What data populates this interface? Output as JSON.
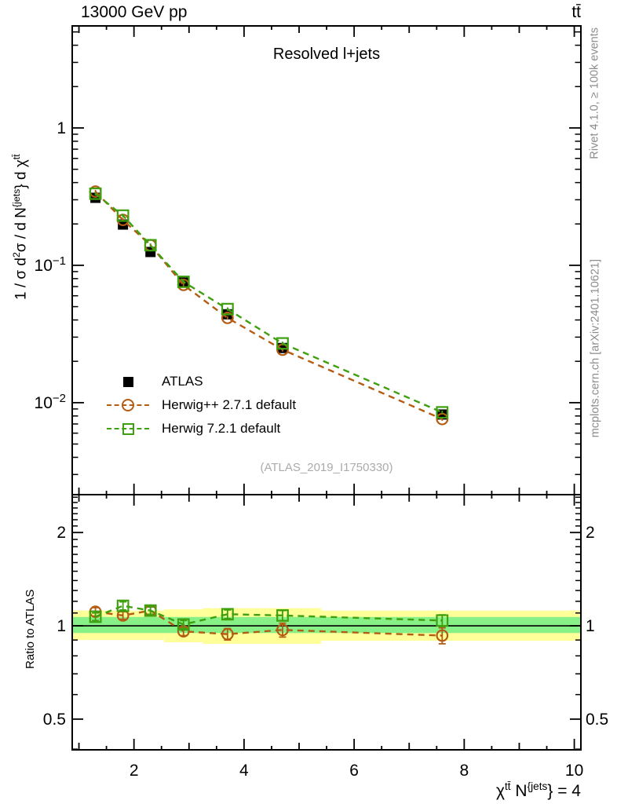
{
  "header": {
    "left": "13000 GeV pp",
    "right": "tt̄"
  },
  "plot": {
    "title": "Resolved l+jets",
    "watermark": "(ATLAS_2019_I1750330)",
    "credit_top": "Rivet 4.1.0, ≥ 100k events",
    "credit_bottom": "mcplots.cern.ch [arXiv:2401.10621]"
  },
  "labels": {
    "ylabel_main_rich": [
      {
        "t": "1 / σ d"
      },
      {
        "t": "2",
        "sup": true
      },
      {
        "t": "σ / d N"
      },
      {
        "t": "{jets",
        "sup": true
      },
      {
        "t": "} d χ"
      },
      {
        "t": "tt̄",
        "sup": true
      }
    ],
    "ylabel_ratio": "Ratio to ATLAS",
    "xlabel_rich": [
      {
        "t": "χ"
      },
      {
        "t": "tt̄",
        "sup": true
      },
      {
        "t": " N"
      },
      {
        "t": "{jets",
        "sup": true
      },
      {
        "t": "} = 4"
      }
    ]
  },
  "legend": {
    "items": [
      "ATLAS",
      "Herwig++ 2.7.1 default",
      "Herwig 7.2.1 default"
    ]
  },
  "chart_data": {
    "type": "line",
    "title": "Resolved l+jets",
    "x_axis": {
      "scale": "linear",
      "lim": [
        0.878,
        10.12
      ],
      "major_ticks": [
        2,
        4,
        6,
        8,
        10
      ],
      "tick_labels": [
        "2",
        "4",
        "6",
        "8",
        "10"
      ]
    },
    "y_main": {
      "scale": "log",
      "lim": [
        0.00214,
        5.53
      ],
      "ticks": [
        {
          "v": 1,
          "label": "1",
          "exp": ""
        },
        {
          "v": 0.1,
          "label": "10",
          "exp": "−1"
        },
        {
          "v": 0.01,
          "label": "10",
          "exp": "−2"
        }
      ]
    },
    "y_ratio": {
      "scale": "log",
      "lim": [
        0.398,
        2.65
      ],
      "ticks": [
        {
          "v": 2,
          "label": "2"
        },
        {
          "v": 1,
          "label": "1"
        },
        {
          "v": 0.5,
          "label": "0.5"
        }
      ]
    },
    "x": [
      1.3,
      1.8,
      2.3,
      2.9,
      3.7,
      4.7,
      7.6
    ],
    "series": [
      {
        "name": "ATLAS",
        "color": "#000000",
        "marker": "square-filled",
        "line": "none",
        "values": [
          0.31,
          0.198,
          0.125,
          0.075,
          0.044,
          0.025,
          0.0082
        ],
        "yerr_rel": 0.045
      },
      {
        "name": "Herwig++ 2.7.1 default",
        "color": "#b35c12",
        "marker": "circle-open",
        "line": "dashed",
        "values": [
          0.344,
          0.214,
          0.14,
          0.072,
          0.0414,
          0.0243,
          0.0076
        ],
        "ratio": [
          1.11,
          1.08,
          1.12,
          0.96,
          0.94,
          0.97,
          0.93
        ],
        "ratio_err": [
          0.035,
          0.03,
          0.035,
          0.03,
          0.04,
          0.05,
          0.055
        ],
        "yerr_rel": 0.03
      },
      {
        "name": "Herwig 7.2.1 default",
        "color": "#3fa00f",
        "marker": "square-open",
        "line": "dashed",
        "values": [
          0.332,
          0.23,
          0.14,
          0.0758,
          0.048,
          0.027,
          0.0085
        ],
        "ratio": [
          1.07,
          1.16,
          1.12,
          1.01,
          1.09,
          1.08,
          1.04
        ],
        "ratio_err": [
          0.03,
          0.035,
          0.03,
          0.03,
          0.035,
          0.04,
          0.045
        ],
        "yerr_rel": 0.03
      }
    ],
    "ratio_bands": {
      "reference_line": 1,
      "yellow": {
        "color": "#ffff99",
        "segments": [
          [
            0.878,
            2.55,
            0.9,
            1.12
          ],
          [
            2.55,
            3.25,
            0.885,
            1.13
          ],
          [
            3.25,
            5.4,
            0.875,
            1.14
          ],
          [
            5.4,
            10.12,
            0.895,
            1.12
          ]
        ]
      },
      "green": {
        "color": "#87f087",
        "segments": [
          [
            0.878,
            10.12,
            0.948,
            1.068
          ]
        ]
      }
    }
  }
}
